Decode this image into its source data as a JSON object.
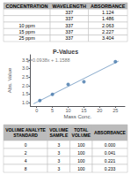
{
  "chart_data": [
    {
      "type": "table",
      "columns": [
        "CONCENTRATION",
        "WAVELENGTH",
        "ABSORBANCE"
      ],
      "rows": [
        [
          null,
          "337",
          "1.124"
        ],
        [
          null,
          "337",
          "1.486"
        ],
        [
          "10 ppm",
          "337",
          "2.063"
        ],
        [
          "15 ppm",
          "337",
          "2.227"
        ],
        [
          "25 ppm",
          "337",
          "3.404"
        ]
      ],
      "color": "#bbbbbb"
    },
    {
      "type": "scatter",
      "title": "P-Values",
      "xlabel": "Mass Conc.",
      "ylabel": "Abs. Value",
      "xlim": [
        -2,
        28
      ],
      "ylim": [
        0.8,
        3.8
      ],
      "xticks": [
        0,
        5,
        10,
        15,
        20,
        25
      ],
      "yticks": [
        {
          "value": 1,
          "label": "1.0"
        },
        1.5,
        {
          "value": 2,
          "label": "2.0"
        },
        2.5,
        {
          "value": 3,
          "label": "3.0"
        },
        3.5
      ],
      "grid": false,
      "annotations": [
        "y=0.0938x + 1.1588"
      ],
      "series": [
        {
          "type": "line",
          "color": "#88aacc",
          "marker": "none",
          "x": [
            -1,
            26
          ],
          "values": [
            0.9316,
            3.4307
          ]
        },
        {
          "type": "scatter",
          "color": "#4477aa",
          "marker": "circle",
          "x": [
            1,
            5,
            10,
            15,
            25
          ],
          "values": [
            1.124,
            1.486,
            2.063,
            2.227,
            3.404
          ]
        }
      ]
    },
    {
      "type": "table",
      "columns": [
        "VOLUME ANALYTE\nSTANDARD",
        "VOLUME\nSAMPLE",
        "TOTAL\nVOLUME",
        "ABSORBANCE"
      ],
      "rows": [
        [
          "0",
          "3",
          "100",
          "0.000"
        ],
        [
          "2",
          "3",
          "100",
          "0.041"
        ],
        [
          "4",
          "3",
          "100",
          "0.221"
        ],
        [
          "8",
          "3",
          "100",
          "0.233"
        ]
      ],
      "color": "#bbbbbb"
    }
  ]
}
